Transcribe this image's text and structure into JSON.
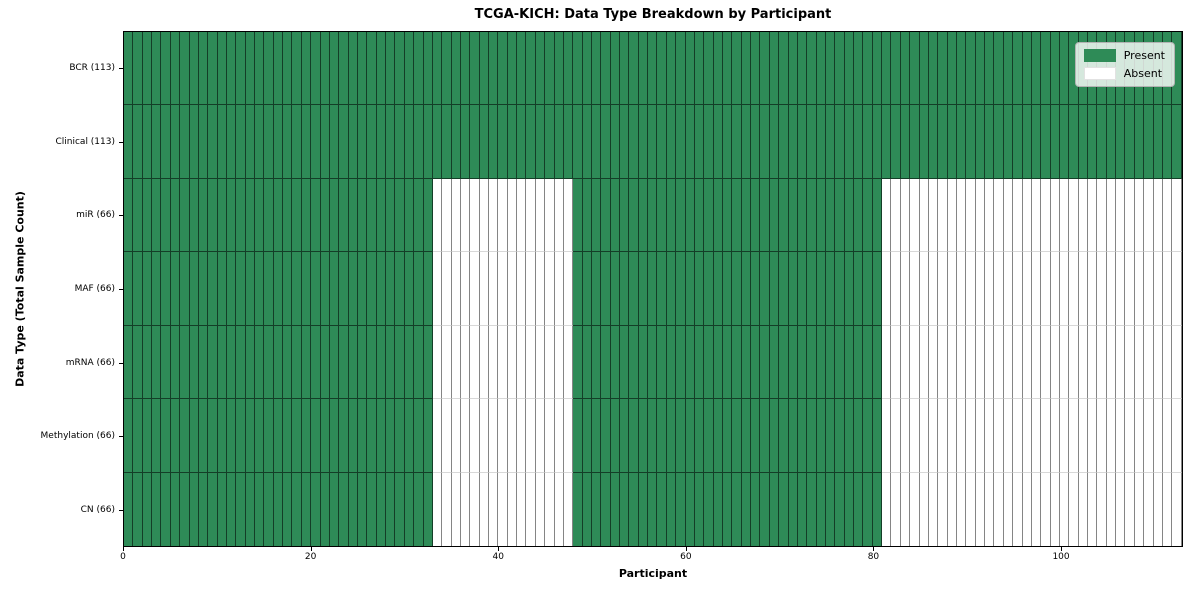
{
  "chart_data": {
    "type": "heatmap",
    "title": "TCGA-KICH: Data Type Breakdown by Participant",
    "xlabel": "Participant",
    "ylabel": "Data Type (Total Sample Count)",
    "n_participants": 113,
    "x_ticks": [
      0,
      20,
      40,
      60,
      80,
      100
    ],
    "rows": [
      {
        "name": "BCR",
        "label": "BCR (113)",
        "total": 113,
        "present_ranges": [
          [
            0,
            113
          ]
        ]
      },
      {
        "name": "Clinical",
        "label": "Clinical (113)",
        "total": 113,
        "present_ranges": [
          [
            0,
            113
          ]
        ]
      },
      {
        "name": "miR",
        "label": "miR (66)",
        "total": 66,
        "present_ranges": [
          [
            0,
            33
          ],
          [
            48,
            81
          ]
        ]
      },
      {
        "name": "MAF",
        "label": "MAF (66)",
        "total": 66,
        "present_ranges": [
          [
            0,
            33
          ],
          [
            48,
            81
          ]
        ]
      },
      {
        "name": "mRNA",
        "label": "mRNA (66)",
        "total": 66,
        "present_ranges": [
          [
            0,
            33
          ],
          [
            48,
            81
          ]
        ]
      },
      {
        "name": "Methylation",
        "label": "Methylation (66)",
        "total": 66,
        "present_ranges": [
          [
            0,
            33
          ],
          [
            48,
            81
          ]
        ]
      },
      {
        "name": "CN",
        "label": "CN (66)",
        "total": 66,
        "present_ranges": [
          [
            0,
            33
          ],
          [
            48,
            81
          ]
        ]
      }
    ],
    "legend": [
      {
        "label": "Present",
        "color": "#2e8b57"
      },
      {
        "label": "Absent",
        "color": "#ffffff"
      }
    ],
    "legend_position": "upper right",
    "colors": {
      "present": "#2e8b57",
      "absent": "#ffffff"
    },
    "grid": true
  }
}
